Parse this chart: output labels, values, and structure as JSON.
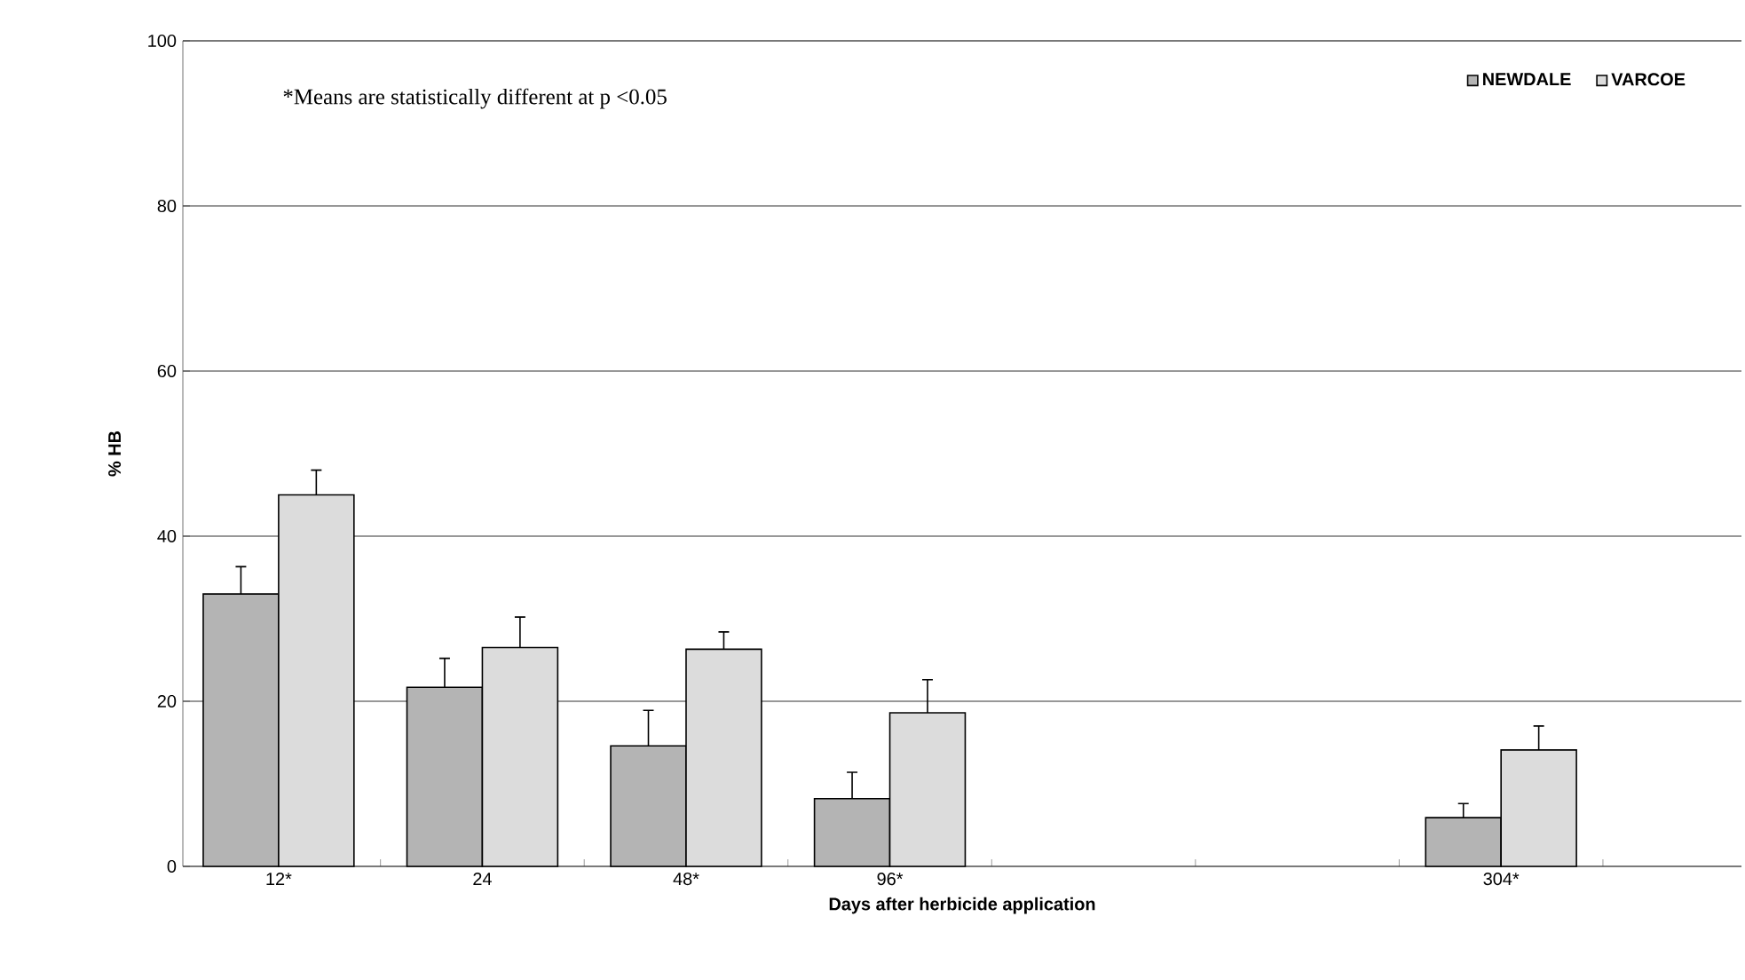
{
  "chart_data": {
    "type": "bar",
    "xlabel": "Days after herbicide application",
    "ylabel": "% HB",
    "categories": [
      "12*",
      "24",
      "48*",
      "96*",
      null,
      null,
      "304*"
    ],
    "series": [
      {
        "name": "NEWDALE",
        "color": "#b4b4b4",
        "values": [
          33,
          21.7,
          14.6,
          8.2,
          null,
          null,
          5.9
        ],
        "errors": [
          [
            33,
            36.3
          ],
          [
            21.7,
            25.2
          ],
          [
            14.6,
            18.9
          ],
          [
            8.2,
            11.4
          ],
          null,
          null,
          [
            5.9,
            7.6
          ]
        ]
      },
      {
        "name": "VARCOE",
        "color": "#dcdcdc",
        "values": [
          45,
          26.5,
          26.3,
          18.6,
          null,
          null,
          14.1
        ],
        "errors": [
          [
            45,
            48
          ],
          [
            26.5,
            30.2
          ],
          [
            26.3,
            28.4
          ],
          [
            18.6,
            22.6
          ],
          null,
          null,
          [
            14.1,
            17
          ]
        ]
      }
    ],
    "ylim": [
      0,
      100
    ],
    "yticks": [
      0,
      20,
      40,
      60,
      80,
      100
    ],
    "grid": "y",
    "legend": "top right",
    "annotations": [
      "*Means are statistically different at p <0.05"
    ]
  }
}
